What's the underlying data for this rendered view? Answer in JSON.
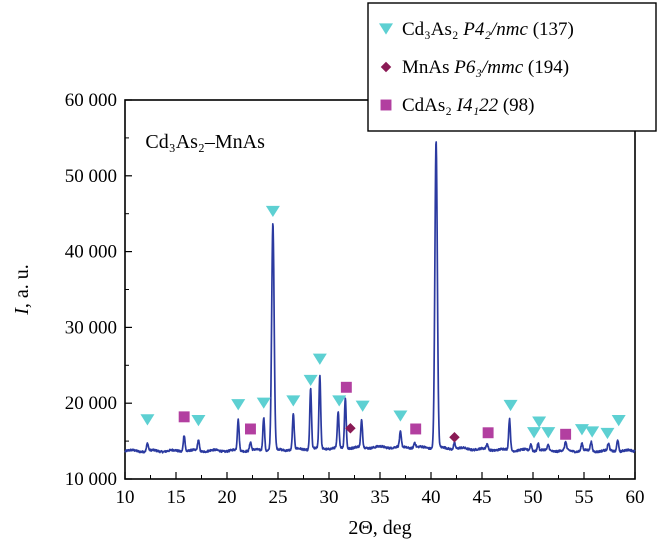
{
  "chart_data": {
    "type": "line",
    "xlabel": "2Θ, deg",
    "ylabel": "I, a. u.",
    "inner_label": "Cd₃As₂–MnAs",
    "xlim": [
      10,
      60
    ],
    "ylim": [
      10000,
      60000
    ],
    "x_ticks": [
      10,
      15,
      20,
      25,
      30,
      35,
      40,
      45,
      50,
      55,
      60
    ],
    "y_ticks": [
      10000,
      20000,
      30000,
      40000,
      50000,
      60000
    ],
    "y_tick_labels": [
      "10 000",
      "20 000",
      "30 000",
      "40 000",
      "50 000",
      "60 000"
    ],
    "line_color": "#2b3aa0",
    "baseline": 13700,
    "peaks": [
      {
        "x": 12.2,
        "y": 14700
      },
      {
        "x": 15.8,
        "y": 15900
      },
      {
        "x": 17.2,
        "y": 15100
      },
      {
        "x": 21.1,
        "y": 17700
      },
      {
        "x": 22.3,
        "y": 14800
      },
      {
        "x": 23.6,
        "y": 18100
      },
      {
        "x": 24.5,
        "y": 43500
      },
      {
        "x": 26.5,
        "y": 18300
      },
      {
        "x": 28.2,
        "y": 21700
      },
      {
        "x": 29.1,
        "y": 23300
      },
      {
        "x": 30.9,
        "y": 18300
      },
      {
        "x": 31.6,
        "y": 20300
      },
      {
        "x": 33.2,
        "y": 17200
      },
      {
        "x": 37.0,
        "y": 15600
      },
      {
        "x": 38.4,
        "y": 14400
      },
      {
        "x": 40.5,
        "y": 54200
      },
      {
        "x": 42.3,
        "y": 14500
      },
      {
        "x": 45.5,
        "y": 14400
      },
      {
        "x": 47.7,
        "y": 17800
      },
      {
        "x": 49.8,
        "y": 14600
      },
      {
        "x": 50.5,
        "y": 14700
      },
      {
        "x": 51.5,
        "y": 14400
      },
      {
        "x": 53.2,
        "y": 14800
      },
      {
        "x": 54.8,
        "y": 14700
      },
      {
        "x": 55.7,
        "y": 14900
      },
      {
        "x": 57.4,
        "y": 14600
      },
      {
        "x": 58.3,
        "y": 15300
      }
    ],
    "markers": {
      "Cd3As2": {
        "label": "Cd₃As₂",
        "space_group": "P4₂/nmc",
        "number": "(137)",
        "color": "#5dd0d2",
        "shape": "triangle-down",
        "points": [
          {
            "x": 12.2,
            "y": 17800
          },
          {
            "x": 17.2,
            "y": 17700
          },
          {
            "x": 21.1,
            "y": 19800
          },
          {
            "x": 23.6,
            "y": 20000
          },
          {
            "x": 24.5,
            "y": 45300
          },
          {
            "x": 26.5,
            "y": 20300
          },
          {
            "x": 28.2,
            "y": 23000
          },
          {
            "x": 29.1,
            "y": 25800
          },
          {
            "x": 31.0,
            "y": 20300
          },
          {
            "x": 33.3,
            "y": 19600
          },
          {
            "x": 37.0,
            "y": 18300
          },
          {
            "x": 47.8,
            "y": 19700
          },
          {
            "x": 50.1,
            "y": 16100
          },
          {
            "x": 50.6,
            "y": 17500
          },
          {
            "x": 51.5,
            "y": 16100
          },
          {
            "x": 54.8,
            "y": 16500
          },
          {
            "x": 55.8,
            "y": 16200
          },
          {
            "x": 57.3,
            "y": 16000
          },
          {
            "x": 58.4,
            "y": 17700
          }
        ]
      },
      "MnAs": {
        "label": "MnAs",
        "space_group": "P6₃/mmc",
        "number": "(194)",
        "color": "#8a1a55",
        "shape": "diamond",
        "points": [
          {
            "x": 32.1,
            "y": 16700
          },
          {
            "x": 42.3,
            "y": 15500
          }
        ]
      },
      "CdAs2": {
        "label": "CdAs₂",
        "space_group": "I4₁22",
        "number": "(98)",
        "color": "#b23fa0",
        "shape": "square",
        "points": [
          {
            "x": 15.8,
            "y": 18200
          },
          {
            "x": 22.3,
            "y": 16600
          },
          {
            "x": 31.7,
            "y": 22100
          },
          {
            "x": 38.5,
            "y": 16600
          },
          {
            "x": 45.6,
            "y": 16100
          },
          {
            "x": 53.2,
            "y": 15900
          }
        ]
      }
    },
    "legend": {
      "placement": "top-right",
      "entries": [
        "Cd3As2",
        "MnAs",
        "CdAs2"
      ]
    }
  }
}
